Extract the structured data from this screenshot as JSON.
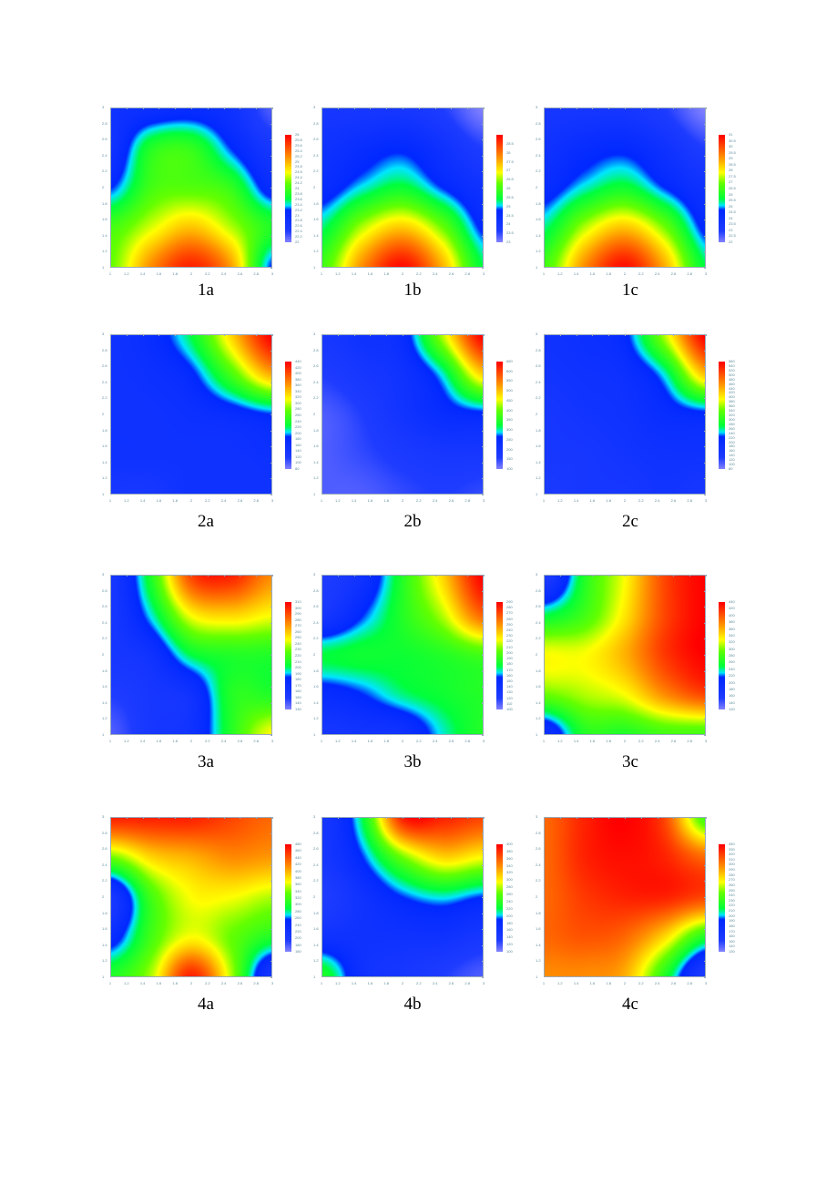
{
  "chart_data": [
    {
      "type": "heatmap",
      "title": "1a",
      "x": [
        1,
        1.5,
        2,
        2.5,
        3
      ],
      "y": [
        3,
        2.5,
        2,
        1.5,
        1
      ],
      "xlim": [
        1,
        3
      ],
      "ylim": [
        1,
        3
      ],
      "z": [
        [
          22.8,
          22.9,
          23,
          22.8,
          22.2
        ],
        [
          22.8,
          23.8,
          23.9,
          23.2,
          22.6
        ],
        [
          23.2,
          24,
          24.1,
          23.9,
          23
        ],
        [
          24,
          24.5,
          24.9,
          24.4,
          23.8
        ],
        [
          24.2,
          25.2,
          25.8,
          25.1,
          23.2
        ]
      ],
      "colorbar": {
        "min": 22,
        "max": 26,
        "labels": [
          "26",
          "25.8",
          "25.6",
          "25.4",
          "25.2",
          "25",
          "24.8",
          "24.6",
          "24.4",
          "24.2",
          "24",
          "23.8",
          "23.6",
          "23.4",
          "23.2",
          "23",
          "22.8",
          "22.6",
          "22.4",
          "22.2",
          "22"
        ]
      }
    },
    {
      "type": "heatmap",
      "title": "1b",
      "x": [
        1,
        1.5,
        2,
        2.5,
        3
      ],
      "y": [
        3,
        2.5,
        2,
        1.5,
        1
      ],
      "xlim": [
        1,
        3
      ],
      "ylim": [
        1,
        3
      ],
      "z": [
        [
          23.9,
          23.9,
          23.9,
          23.6,
          23
        ],
        [
          24.2,
          24.5,
          24.7,
          24.2,
          23.6
        ],
        [
          24.5,
          25.1,
          25.5,
          24.8,
          24.2
        ],
        [
          25.3,
          26.6,
          27.3,
          26.3,
          24.7
        ],
        [
          26,
          27.8,
          28.9,
          27.5,
          25.4
        ]
      ],
      "colorbar": {
        "min": 23,
        "max": 29,
        "labels": [
          "",
          "28.5",
          "28",
          "27.5",
          "27",
          "26.5",
          "26",
          "25.5",
          "25",
          "24.5",
          "24",
          "23.5",
          "23"
        ]
      }
    },
    {
      "type": "heatmap",
      "title": "1c",
      "x": [
        1,
        1.5,
        2,
        2.5,
        3
      ],
      "y": [
        3,
        2.5,
        2,
        1.5,
        1
      ],
      "xlim": [
        1,
        3
      ],
      "ylim": [
        1,
        3
      ],
      "z": [
        [
          23.4,
          23.4,
          23.4,
          22.9,
          22
        ],
        [
          23.8,
          24.3,
          24.5,
          23.8,
          22.9
        ],
        [
          24.3,
          25.2,
          25.8,
          24.7,
          23.8
        ],
        [
          25.4,
          27.4,
          28.5,
          27,
          24.5
        ],
        [
          26.5,
          29.2,
          30.8,
          28.8,
          25.6
        ]
      ],
      "colorbar": {
        "min": 22,
        "max": 31,
        "labels": [
          "31",
          "30.5",
          "30",
          "29.5",
          "29",
          "28.5",
          "28",
          "27.5",
          "27",
          "26.5",
          "26",
          "25.5",
          "25",
          "24.5",
          "24",
          "23.5",
          "23",
          "22.5",
          "22"
        ]
      }
    },
    {
      "type": "heatmap",
      "title": "2a",
      "x": [
        1,
        1.5,
        2,
        2.5,
        3
      ],
      "y": [
        3,
        2.5,
        2,
        1.5,
        1
      ],
      "xlim": [
        1,
        3
      ],
      "ylim": [
        1,
        3
      ],
      "z": [
        [
          152,
          170,
          224,
          332,
          440
        ],
        [
          152,
          159,
          181,
          260,
          350
        ],
        [
          152,
          152,
          159,
          170,
          188
        ],
        [
          152,
          152,
          152,
          152,
          159
        ],
        [
          134,
          134,
          152,
          152,
          152
        ]
      ],
      "colorbar": {
        "min": 80,
        "max": 440,
        "labels": [
          "440",
          "420",
          "400",
          "380",
          "360",
          "340",
          "320",
          "300",
          "280",
          "260",
          "240",
          "220",
          "200",
          "180",
          "160",
          "140",
          "120",
          "100",
          "80"
        ]
      }
    },
    {
      "type": "heatmap",
      "title": "2b",
      "x": [
        1,
        1.5,
        2,
        2.5,
        3
      ],
      "y": [
        3,
        2.5,
        2,
        1.5,
        1
      ],
      "xlim": [
        1,
        3
      ],
      "ylim": [
        1,
        3
      ],
      "z": [
        [
          182,
          210,
          238,
          430,
          650
        ],
        [
          155,
          182,
          210,
          292,
          485
        ],
        [
          128,
          155,
          199,
          238,
          254
        ],
        [
          128,
          144,
          166,
          182,
          182
        ],
        [
          128,
          128,
          144,
          155,
          144
        ]
      ],
      "colorbar": {
        "min": 100,
        "max": 650,
        "labels": [
          "650",
          "600",
          "550",
          "500",
          "450",
          "400",
          "350",
          "300",
          "250",
          "200",
          "150",
          "100"
        ]
      }
    },
    {
      "type": "heatmap",
      "title": "2c",
      "x": [
        1,
        1.5,
        2,
        2.5,
        3
      ],
      "y": [
        3,
        2.5,
        2,
        1.5,
        1
      ],
      "xlim": [
        1,
        3
      ],
      "ylim": [
        1,
        3
      ],
      "z": [
        [
          176,
          186,
          214,
          368,
          560
        ],
        [
          166,
          176,
          186,
          248,
          426
        ],
        [
          152,
          166,
          176,
          200,
          214
        ],
        [
          152,
          152,
          166,
          176,
          176
        ],
        [
          138,
          152,
          152,
          166,
          152
        ]
      ],
      "colorbar": {
        "min": 80,
        "max": 560,
        "labels": [
          "560",
          "540",
          "520",
          "500",
          "480",
          "460",
          "440",
          "420",
          "400",
          "380",
          "360",
          "340",
          "320",
          "300",
          "280",
          "260",
          "240",
          "220",
          "200",
          "180",
          "160",
          "140",
          "120",
          "100",
          "80"
        ]
      }
    },
    {
      "type": "heatmap",
      "title": "3a",
      "x": [
        1,
        1.5,
        2,
        2.5,
        3
      ],
      "y": [
        3,
        2.5,
        2,
        1.5,
        1
      ],
      "xlim": [
        1,
        3
      ],
      "ylim": [
        1,
        3
      ],
      "z": [
        [
          157,
          211,
          292,
          301,
          274
        ],
        [
          157,
          193,
          247,
          256,
          247
        ],
        [
          157,
          166,
          202,
          211,
          211
        ],
        [
          148,
          157,
          166,
          211,
          211
        ],
        [
          139,
          157,
          166,
          211,
          247
        ]
      ],
      "colorbar": {
        "min": 130,
        "max": 310,
        "labels": [
          "310",
          "300",
          "290",
          "280",
          "270",
          "260",
          "250",
          "240",
          "230",
          "220",
          "210",
          "200",
          "190",
          "180",
          "170",
          "160",
          "150",
          "140",
          "130"
        ]
      }
    },
    {
      "type": "heatmap",
      "title": "3b",
      "x": [
        1,
        1.5,
        2,
        2.5,
        3
      ],
      "y": [
        3,
        2.5,
        2,
        1.5,
        1
      ],
      "xlim": [
        1,
        3
      ],
      "ylim": [
        1,
        3
      ],
      "z": [
        [
          119,
          138,
          186,
          233,
          290
        ],
        [
          129,
          157,
          186,
          214,
          262
        ],
        [
          176,
          180,
          180,
          186,
          195
        ],
        [
          148,
          157,
          172,
          180,
          186
        ],
        [
          129,
          134,
          138,
          167,
          186
        ]
      ],
      "colorbar": {
        "min": 100,
        "max": 290,
        "labels": [
          "290",
          "280",
          "270",
          "260",
          "250",
          "240",
          "230",
          "220",
          "210",
          "200",
          "190",
          "180",
          "170",
          "160",
          "150",
          "140",
          "130",
          "120",
          "110",
          "100"
        ]
      }
    },
    {
      "type": "heatmap",
      "title": "3c",
      "x": [
        1,
        1.5,
        2,
        2.5,
        3
      ],
      "y": [
        3,
        2.5,
        2,
        1.5,
        1
      ],
      "xlim": [
        1,
        3
      ],
      "ylim": [
        1,
        3
      ],
      "z": [
        [
          152,
          264,
          328,
          408,
          440
        ],
        [
          248,
          280,
          338,
          408,
          440
        ],
        [
          328,
          328,
          360,
          414,
          440
        ],
        [
          296,
          312,
          328,
          376,
          408
        ],
        [
          184,
          264,
          264,
          280,
          280
        ]
      ],
      "colorbar": {
        "min": 120,
        "max": 440,
        "labels": [
          "440",
          "420",
          "400",
          "380",
          "360",
          "340",
          "320",
          "300",
          "280",
          "260",
          "240",
          "220",
          "200",
          "180",
          "160",
          "140",
          "120"
        ]
      }
    },
    {
      "type": "heatmap",
      "title": "4a",
      "x": [
        1,
        1.5,
        2,
        2.5,
        3
      ],
      "y": [
        3,
        2.5,
        2,
        1.5,
        1
      ],
      "xlim": [
        1,
        3
      ],
      "ylim": [
        1,
        3
      ],
      "z": [
        [
          464,
          464,
          464,
          448,
          432
        ],
        [
          336,
          384,
          400,
          416,
          410
        ],
        [
          208,
          320,
          368,
          368,
          352
        ],
        [
          240,
          320,
          368,
          336,
          304
        ],
        [
          304,
          352,
          464,
          352,
          208
        ]
      ],
      "colorbar": {
        "min": 160,
        "max": 480,
        "labels": [
          "480",
          "460",
          "440",
          "420",
          "400",
          "380",
          "360",
          "340",
          "320",
          "300",
          "280",
          "260",
          "240",
          "220",
          "200",
          "180",
          "160"
        ]
      }
    },
    {
      "type": "heatmap",
      "title": "4b",
      "x": [
        1,
        1.5,
        2,
        2.5,
        3
      ],
      "y": [
        3,
        2.5,
        2,
        1.5,
        1
      ],
      "xlim": [
        1,
        3
      ],
      "ylim": [
        1,
        3
      ],
      "z": [
        [
          145,
          220,
          385,
          385,
          370
        ],
        [
          145,
          190,
          265,
          310,
          295
        ],
        [
          130,
          160,
          190,
          205,
          190
        ],
        [
          160,
          160,
          160,
          160,
          145
        ],
        [
          235,
          160,
          145,
          130,
          115
        ]
      ],
      "colorbar": {
        "min": 100,
        "max": 400,
        "labels": [
          "400",
          "380",
          "360",
          "340",
          "320",
          "300",
          "280",
          "260",
          "240",
          "220",
          "200",
          "180",
          "160",
          "140",
          "120",
          "100"
        ]
      }
    },
    {
      "type": "heatmap",
      "title": "4c",
      "x": [
        1,
        1.5,
        2,
        2.5,
        3
      ],
      "y": [
        3,
        2.5,
        2,
        1.5,
        1
      ],
      "xlim": [
        1,
        3
      ],
      "ylim": [
        1,
        3
      ],
      "z": [
        [
          309,
          330,
          340,
          319,
          235
        ],
        [
          309,
          330,
          336,
          330,
          309
        ],
        [
          309,
          323,
          330,
          330,
          319
        ],
        [
          309,
          315,
          309,
          277,
          225
        ],
        [
          298,
          298,
          288,
          225,
          151
        ]
      ],
      "colorbar": {
        "min": 130,
        "max": 340,
        "labels": [
          "340",
          "330",
          "320",
          "310",
          "300",
          "290",
          "280",
          "270",
          "260",
          "250",
          "240",
          "230",
          "220",
          "210",
          "200",
          "190",
          "180",
          "170",
          "160",
          "150",
          "140",
          "130"
        ]
      }
    }
  ],
  "axis_ticks": {
    "x": [
      "1",
      "1.2",
      "1.4",
      "1.6",
      "1.8",
      "2",
      "2.2",
      "2.4",
      "2.6",
      "2.8",
      "3"
    ],
    "y": [
      "3",
      "2.8",
      "2.6",
      "2.4",
      "2.2",
      "2",
      "1.8",
      "1.6",
      "1.4",
      "1.2",
      "1"
    ]
  },
  "colormap": [
    "#8080ff",
    "#1e3cff",
    "#0028ff",
    "#00e6ff",
    "#00ff3c",
    "#64ff00",
    "#ffff00",
    "#ff8c00",
    "#ff0000"
  ]
}
